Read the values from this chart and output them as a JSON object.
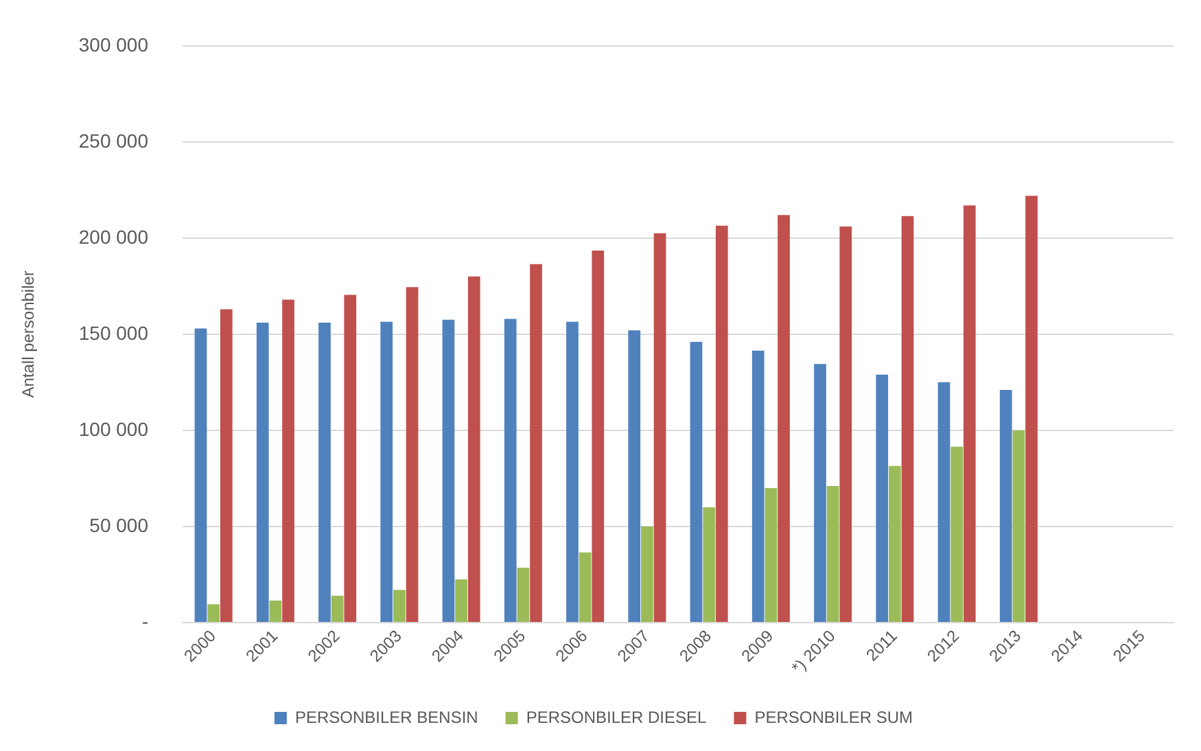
{
  "chart_data": {
    "type": "bar",
    "ylabel": "Antall personbiler",
    "categories": [
      "2000",
      "2001",
      "2002",
      "2003",
      "2004",
      "2005",
      "2006",
      "2007",
      "2008",
      "2009",
      "*) 2010",
      "2011",
      "2012",
      "2013",
      "2014",
      "2015"
    ],
    "series": [
      {
        "name": "PERSONBILER BENSIN",
        "color": "#4f81bd",
        "values": [
          153000,
          156000,
          156000,
          156500,
          157500,
          158000,
          156500,
          152000,
          146000,
          141500,
          134500,
          129000,
          125000,
          121000,
          null,
          null
        ]
      },
      {
        "name": "PERSONBILER DIESEL",
        "color": "#9bbb59",
        "values": [
          9500,
          11500,
          14000,
          17000,
          22500,
          28500,
          36500,
          50000,
          60000,
          70000,
          71000,
          81500,
          91500,
          100000,
          null,
          null
        ]
      },
      {
        "name": "PERSONBILER SUM",
        "color": "#c0504d",
        "values": [
          163000,
          168000,
          170500,
          174500,
          180000,
          186500,
          193500,
          202500,
          206500,
          212000,
          206000,
          211500,
          217000,
          222000,
          null,
          null
        ]
      }
    ],
    "ylim": [
      0,
      300000
    ],
    "yticks": [
      {
        "value": 0,
        "label": "-"
      },
      {
        "value": 50000,
        "label": "50 000"
      },
      {
        "value": 100000,
        "label": "100 000"
      },
      {
        "value": 150000,
        "label": "150 000"
      },
      {
        "value": 200000,
        "label": "200 000"
      },
      {
        "value": 250000,
        "label": "250 000"
      },
      {
        "value": 300000,
        "label": "300 000"
      }
    ],
    "grid": "y",
    "legend": "bottom"
  }
}
